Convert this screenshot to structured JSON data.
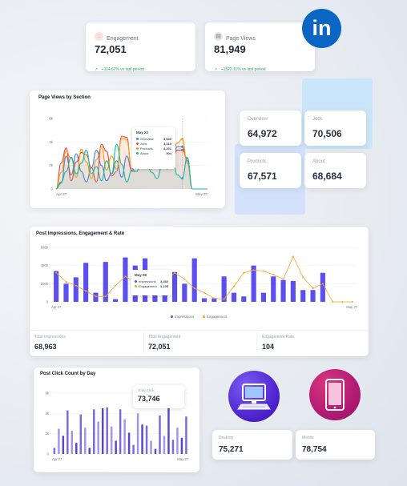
{
  "kpis": {
    "engagement": {
      "label": "Engagement",
      "value": "72,051",
      "change": "+114.62% vs last period"
    },
    "page_views": {
      "label": "Page Views",
      "value": "81,949",
      "change": "+1522.11% vs last period"
    }
  },
  "section_cards": {
    "overview": {
      "label": "Overview",
      "value": "64,972"
    },
    "jobs": {
      "label": "Jobs",
      "value": "70,506"
    },
    "products": {
      "label": "Products",
      "value": "67,571"
    },
    "about": {
      "label": "About",
      "value": "68,684"
    }
  },
  "page_views_chart": {
    "title": "Page Views by Section",
    "y_ticks": [
      "6k",
      "4k",
      "2k",
      "0"
    ],
    "x_start": "Apr 27",
    "x_end": "May 27",
    "tooltip": {
      "title": "May 22",
      "rows": [
        {
          "name": "Overview",
          "value": "3,600",
          "color": "#3b82f6"
        },
        {
          "name": "Jobs",
          "value": "3,315",
          "color": "#ef4444"
        },
        {
          "name": "Products",
          "value": "4,251",
          "color": "#f59e0b"
        },
        {
          "name": "About",
          "value": "904",
          "color": "#14b8a6"
        }
      ]
    }
  },
  "impressions_chart": {
    "title": "Post Impressions, Engagement & Rate",
    "y_ticks": [
      "6000",
      "4000",
      "2000",
      "0"
    ],
    "x_start": "Apr 27",
    "x_end": "May 27",
    "legend": {
      "impressions": "Impressions",
      "engagement": "Engagement"
    },
    "tooltip": {
      "title": "May 09",
      "rows": [
        {
          "name": "Impressions",
          "value": "3,282",
          "color": "#5b4ff0"
        },
        {
          "name": "Engagement",
          "value": "3,195",
          "color": "#f5a623"
        }
      ]
    },
    "stats": [
      {
        "label": "Total Impressions",
        "value": "68,963"
      },
      {
        "label": "Total Engagement",
        "value": "72,051"
      },
      {
        "label": "Engagement Rate",
        "value": "104"
      }
    ]
  },
  "click_chart": {
    "title": "Post Click Count by Day",
    "y_ticks": [
      "6k",
      "4k",
      "2k",
      "0"
    ],
    "x_start": "Apr 27",
    "x_end": "May 27",
    "total_label": "Total Click",
    "total_value": "73,746"
  },
  "devices": {
    "desktop": {
      "label": "Desktop",
      "value": "75,271"
    },
    "mobile": {
      "label": "Mobile",
      "value": "78,754"
    }
  },
  "brand": {
    "logo_text": "in",
    "color": "#0a66c2"
  },
  "chart_data": [
    {
      "type": "line",
      "title": "Page Views by Section",
      "ylim": [
        0,
        6000
      ],
      "x": [
        "Apr 27",
        "",
        "",
        "",
        "",
        "",
        "",
        "",
        "",
        "",
        "",
        "",
        "",
        "",
        "",
        "",
        "",
        "",
        "",
        "",
        "",
        "",
        "",
        "",
        "",
        "May 22",
        "",
        "",
        "",
        "",
        "May 27"
      ],
      "series": [
        {
          "name": "Overview",
          "color": "#3b82f6",
          "values": [
            0,
            500,
            2800,
            1200,
            3000,
            1500,
            600,
            1800,
            3300,
            2000,
            700,
            1300,
            2400,
            1000,
            2800,
            1600,
            2000,
            3400,
            3000,
            2500,
            2000,
            2700,
            3200,
            2200,
            3600,
            3600,
            2400,
            0,
            0,
            0,
            0
          ]
        },
        {
          "name": "Jobs",
          "color": "#ef4444",
          "values": [
            0,
            2200,
            3500,
            700,
            2300,
            3100,
            2900,
            1800,
            600,
            3800,
            3200,
            1100,
            1500,
            4500,
            4400,
            1500,
            1500,
            3400,
            2600,
            1700,
            3500,
            2400,
            3200,
            2400,
            3300,
            3315,
            2600,
            0,
            0,
            0,
            0
          ]
        },
        {
          "name": "Products",
          "color": "#f59e0b",
          "values": [
            0,
            1400,
            3200,
            2600,
            1000,
            3400,
            2300,
            900,
            2500,
            3600,
            1600,
            2800,
            1700,
            4300,
            4200,
            1700,
            2200,
            1800,
            2800,
            2200,
            3000,
            1800,
            2600,
            2900,
            3900,
            4251,
            2200,
            0,
            0,
            0,
            0
          ]
        },
        {
          "name": "About",
          "color": "#14b8a6",
          "values": [
            0,
            600,
            1500,
            2700,
            1300,
            2200,
            3300,
            1300,
            1900,
            700,
            2400,
            1300,
            3800,
            2100,
            600,
            1600,
            1500,
            3200,
            2000,
            1400,
            900,
            2000,
            1700,
            2800,
            1200,
            904,
            2700,
            0,
            0,
            0,
            0
          ]
        }
      ]
    },
    {
      "type": "bar",
      "title": "Post Impressions, Engagement & Rate",
      "ylim": [
        0,
        6000
      ],
      "x": [
        "Apr 27",
        "",
        "",
        "",
        "",
        "",
        "",
        "",
        "",
        "",
        "",
        "",
        "May 09",
        "",
        "",
        "",
        "",
        "",
        "",
        "",
        "",
        "",
        "",
        "",
        "",
        "",
        "",
        "",
        "",
        "",
        "May 27"
      ],
      "series": [
        {
          "name": "Impressions",
          "color": "#5b4ff0",
          "values": [
            3400,
            2000,
            2700,
            4300,
            1000,
            4400,
            300,
            4900,
            4000,
            4800,
            3400,
            2100,
            3282,
            2000,
            4800,
            400,
            400,
            2800,
            1000,
            600,
            4000,
            1000,
            2800,
            2400,
            2300,
            1300,
            1300,
            3200,
            0,
            0,
            0
          ]
        },
        {
          "name": "Engagement",
          "color": "#f5a623",
          "values": [
            3200,
            2200,
            1800,
            1200,
            600,
            600,
            1800,
            2800,
            2200,
            2200,
            2100,
            2200,
            3195,
            2500,
            1500,
            1000,
            400,
            300,
            1700,
            3200,
            3500,
            3400,
            3000,
            2500,
            5000,
            2700,
            1500,
            2000,
            0,
            0,
            0
          ]
        }
      ]
    },
    {
      "type": "bar",
      "title": "Post Click Count by Day",
      "ylim": [
        0,
        6000
      ],
      "x": [
        "Apr 27",
        "",
        "",
        "",
        "",
        "",
        "",
        "",
        "",
        "",
        "",
        "",
        "",
        "",
        "",
        "",
        "",
        "",
        "",
        "",
        "",
        "",
        "",
        "",
        "",
        "",
        "",
        "",
        "",
        "",
        "May 27"
      ],
      "series": [
        {
          "name": "Clicks",
          "color": "#7c68e0",
          "values": [
            600,
            2500,
            1800,
            4300,
            2300,
            1100,
            3900,
            2600,
            600,
            4400,
            3200,
            4500,
            4600,
            2700,
            1300,
            4400,
            3400,
            2100,
            900,
            4000,
            2900,
            2800,
            1300,
            500,
            3800,
            1800,
            4600,
            1400,
            2600,
            1600,
            3700
          ]
        }
      ]
    }
  ]
}
